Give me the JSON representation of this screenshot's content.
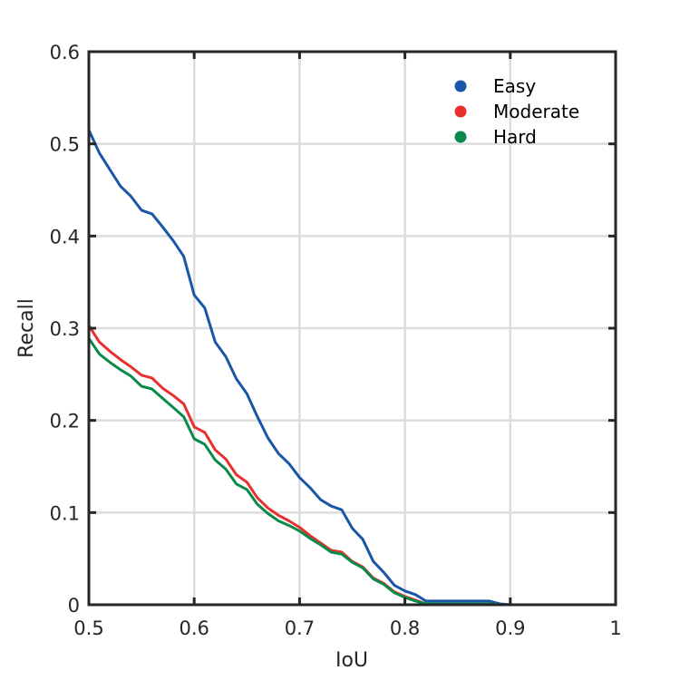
{
  "chart_data": {
    "type": "line",
    "title": "",
    "xlabel": "IoU",
    "ylabel": "Recall",
    "xlim": [
      0.5,
      1.0
    ],
    "ylim": [
      0,
      0.6
    ],
    "xticks": [
      0.5,
      0.6,
      0.7,
      0.8,
      0.9,
      1.0
    ],
    "xtick_labels": [
      "0.5",
      "0.6",
      "0.7",
      "0.8",
      "0.9",
      "1"
    ],
    "yticks": [
      0,
      0.1,
      0.2,
      0.3,
      0.4,
      0.5,
      0.6
    ],
    "ytick_labels": [
      "0",
      "0.1",
      "0.2",
      "0.3",
      "0.4",
      "0.5",
      "0.6"
    ],
    "grid": true,
    "legend_position": "upper right",
    "x": [
      0.5,
      0.51,
      0.52,
      0.53,
      0.54,
      0.55,
      0.56,
      0.57,
      0.58,
      0.59,
      0.6,
      0.61,
      0.62,
      0.63,
      0.64,
      0.65,
      0.66,
      0.67,
      0.68,
      0.69,
      0.7,
      0.71,
      0.72,
      0.73,
      0.74,
      0.75,
      0.76,
      0.77,
      0.78,
      0.79,
      0.8,
      0.81,
      0.82,
      0.83,
      0.84,
      0.85,
      0.86,
      0.87,
      0.88,
      0.89,
      0.9,
      0.91,
      0.92,
      0.93,
      0.94,
      0.95,
      0.96,
      0.97,
      0.98,
      0.99,
      1.0
    ],
    "series": [
      {
        "name": "Easy",
        "color": "#1a56a8",
        "values": [
          0.515,
          0.49,
          0.472,
          0.454,
          0.443,
          0.428,
          0.424,
          0.41,
          0.395,
          0.378,
          0.336,
          0.322,
          0.285,
          0.269,
          0.245,
          0.229,
          0.204,
          0.181,
          0.164,
          0.153,
          0.138,
          0.127,
          0.114,
          0.107,
          0.103,
          0.083,
          0.071,
          0.047,
          0.035,
          0.021,
          0.015,
          0.011,
          0.004,
          0.004,
          0.004,
          0.004,
          0.004,
          0.004,
          0.004,
          0.001,
          0,
          0,
          0,
          0,
          0,
          0,
          0,
          0,
          0,
          0,
          0
        ]
      },
      {
        "name": "Moderate",
        "color": "#e8302f",
        "values": [
          0.303,
          0.285,
          0.275,
          0.266,
          0.258,
          0.249,
          0.246,
          0.235,
          0.227,
          0.218,
          0.193,
          0.187,
          0.168,
          0.158,
          0.141,
          0.133,
          0.116,
          0.105,
          0.097,
          0.091,
          0.084,
          0.075,
          0.067,
          0.059,
          0.057,
          0.047,
          0.041,
          0.029,
          0.023,
          0.014,
          0.009,
          0.005,
          0.001,
          0.001,
          0.001,
          0.001,
          0.001,
          0.001,
          0.001,
          0,
          0,
          0,
          0,
          0,
          0,
          0,
          0,
          0,
          0,
          0,
          0
        ]
      },
      {
        "name": "Hard",
        "color": "#0a8a4a",
        "values": [
          0.289,
          0.272,
          0.263,
          0.255,
          0.248,
          0.237,
          0.234,
          0.224,
          0.214,
          0.204,
          0.18,
          0.174,
          0.157,
          0.147,
          0.131,
          0.125,
          0.109,
          0.099,
          0.091,
          0.086,
          0.08,
          0.072,
          0.065,
          0.057,
          0.055,
          0.046,
          0.04,
          0.028,
          0.022,
          0.013,
          0.008,
          0.004,
          0.001,
          0.001,
          0.001,
          0.001,
          0.001,
          0.001,
          0.001,
          0,
          0,
          0,
          0,
          0,
          0,
          0,
          0,
          0,
          0,
          0,
          0
        ]
      }
    ]
  },
  "legend": {
    "items": [
      {
        "label": "Easy",
        "color": "#1a56a8"
      },
      {
        "label": "Moderate",
        "color": "#e8302f"
      },
      {
        "label": "Hard",
        "color": "#0a8a4a"
      }
    ]
  },
  "axes": {
    "xlabel": "IoU",
    "ylabel": "Recall"
  }
}
